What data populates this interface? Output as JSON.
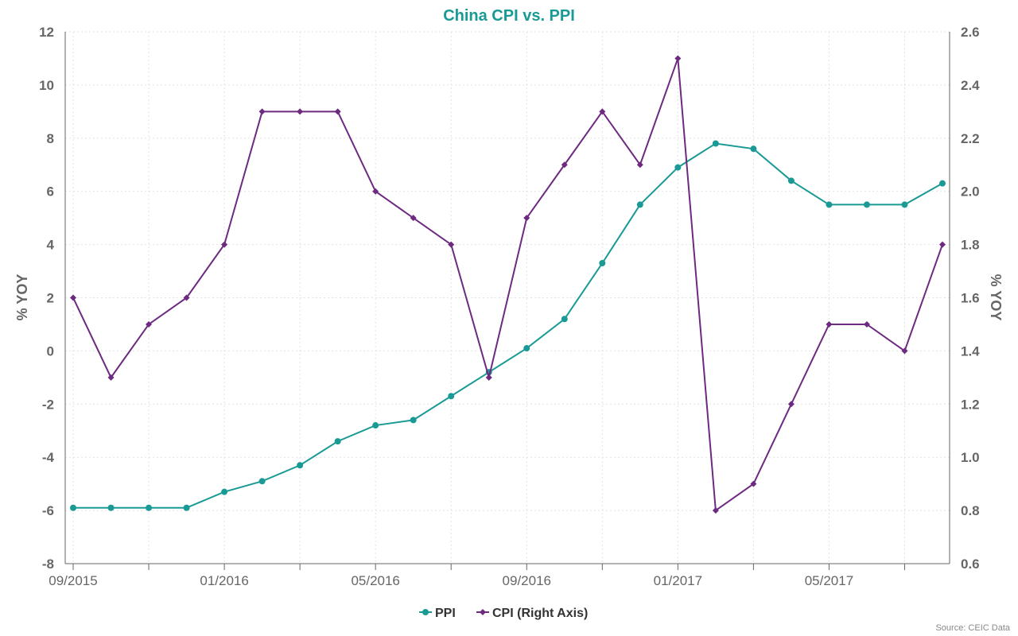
{
  "chart_data": {
    "type": "line",
    "title": "China CPI vs. PPI",
    "x": [
      "09/2015",
      "10/2015",
      "11/2015",
      "12/2015",
      "01/2016",
      "02/2016",
      "03/2016",
      "04/2016",
      "05/2016",
      "06/2016",
      "07/2016",
      "08/2016",
      "09/2016",
      "10/2016",
      "11/2016",
      "12/2016",
      "01/2017",
      "02/2017",
      "03/2017",
      "04/2017",
      "05/2017",
      "06/2017",
      "07/2017",
      "08/2017"
    ],
    "xticks": [
      "09/2015",
      "01/2016",
      "05/2016",
      "09/2016",
      "01/2017",
      "05/2017"
    ],
    "series": [
      {
        "name": "PPI",
        "axis": "left",
        "color": "#1a9a95",
        "marker": "circle",
        "values": [
          -5.9,
          -5.9,
          -5.9,
          -5.9,
          -5.3,
          -4.9,
          -4.3,
          -3.4,
          -2.8,
          -2.6,
          -1.7,
          -0.8,
          0.1,
          1.2,
          3.3,
          5.5,
          6.9,
          7.8,
          7.6,
          6.4,
          5.5,
          5.5,
          5.5,
          6.3
        ]
      },
      {
        "name": "CPI (Right Axis)",
        "axis": "right",
        "color": "#6d2a80",
        "marker": "diamond",
        "values": [
          1.6,
          1.3,
          1.5,
          1.6,
          1.8,
          2.3,
          2.3,
          2.3,
          2.0,
          1.9,
          1.8,
          1.3,
          1.9,
          2.1,
          2.3,
          2.1,
          2.5,
          0.8,
          0.9,
          1.2,
          1.5,
          1.5,
          1.4,
          1.8
        ]
      }
    ],
    "ylabel": "% YOY",
    "ylim": [
      -8,
      12
    ],
    "yticks": [
      "12",
      "10",
      "8",
      "6",
      "4",
      "2",
      "0",
      "-2",
      "-4",
      "-6",
      "-8"
    ],
    "y2label": "% YOY",
    "y2lim": [
      0.6,
      2.6
    ],
    "y2ticks": [
      "2.6",
      "2.4",
      "2.2",
      "2.0",
      "1.8",
      "1.6",
      "1.4",
      "1.2",
      "1.0",
      "0.8",
      "0.6"
    ],
    "grid": true,
    "legend_position": "bottom-center",
    "title_color": "#1a9a95",
    "source": "Source: CEIC Data"
  }
}
